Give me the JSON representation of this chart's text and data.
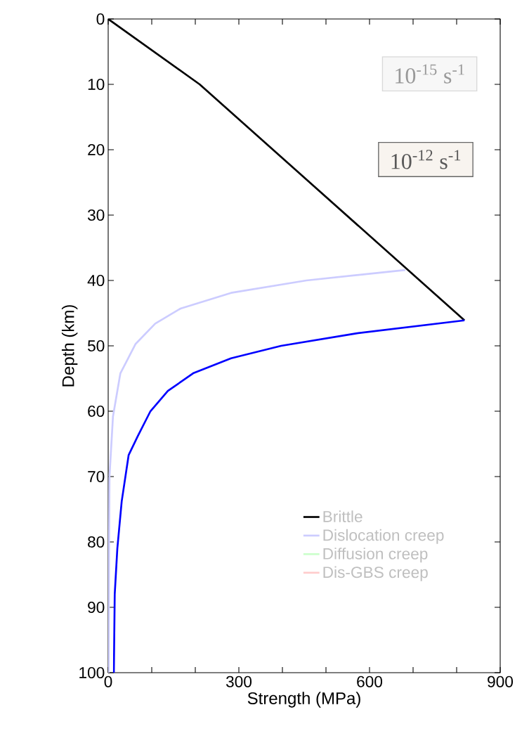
{
  "chart_data": {
    "type": "line",
    "xlabel": "Strength (MPa)",
    "ylabel": "Depth (km)",
    "annotations": [
      "10$^{-15}$ s$^{-1}$",
      "10$^{-12}$ s$^{-1}$"
    ],
    "xlim": [
      0,
      900
    ],
    "ylim": [
      100,
      0
    ],
    "xticks": [
      0,
      {
        "value": 100,
        "label": null
      },
      {
        "value": 200,
        "label": null
      },
      300,
      {
        "value": 400,
        "label": null
      },
      {
        "value": 500,
        "label": null
      },
      600,
      {
        "value": 700,
        "label": null
      },
      {
        "value": 800,
        "label": null
      },
      900
    ],
    "yticks": [
      0,
      10,
      20,
      30,
      40,
      50,
      60,
      70,
      80,
      90,
      100
    ],
    "grid": false,
    "legend": "bottom right",
    "marker": "none",
    "line_style": "solid",
    "series": [
      {
        "name": "Brittle",
        "color": "#000000",
        "x": [
          0,
          210,
          818
        ],
        "values": [
          0,
          10,
          46.1
        ]
      },
      {
        "name": "Dislocation creep",
        "color": "#ccccff",
        "x": [
          682,
          455,
          282,
          166,
          108,
          63,
          28,
          11,
          3,
          2,
          1
        ],
        "values": [
          38.4,
          40.0,
          41.9,
          44.3,
          46.6,
          49.7,
          54.2,
          60.8,
          70,
          80,
          100
        ]
      },
      {
        "name": "Diffusion creep",
        "color": "#ccffcc"
      },
      {
        "name": "Dis-GBS creep",
        "color": "#ffcccc"
      },
      {
        "color": "#0000ff",
        "x": [
          818,
          569,
          397,
          282,
          195,
          137,
          97,
          68,
          47,
          31,
          21,
          15,
          13
        ],
        "values": [
          46.1,
          48.1,
          50.0,
          51.9,
          54.2,
          56.9,
          60.0,
          63.8,
          66.7,
          73.8,
          81,
          88,
          100
        ]
      }
    ]
  }
}
